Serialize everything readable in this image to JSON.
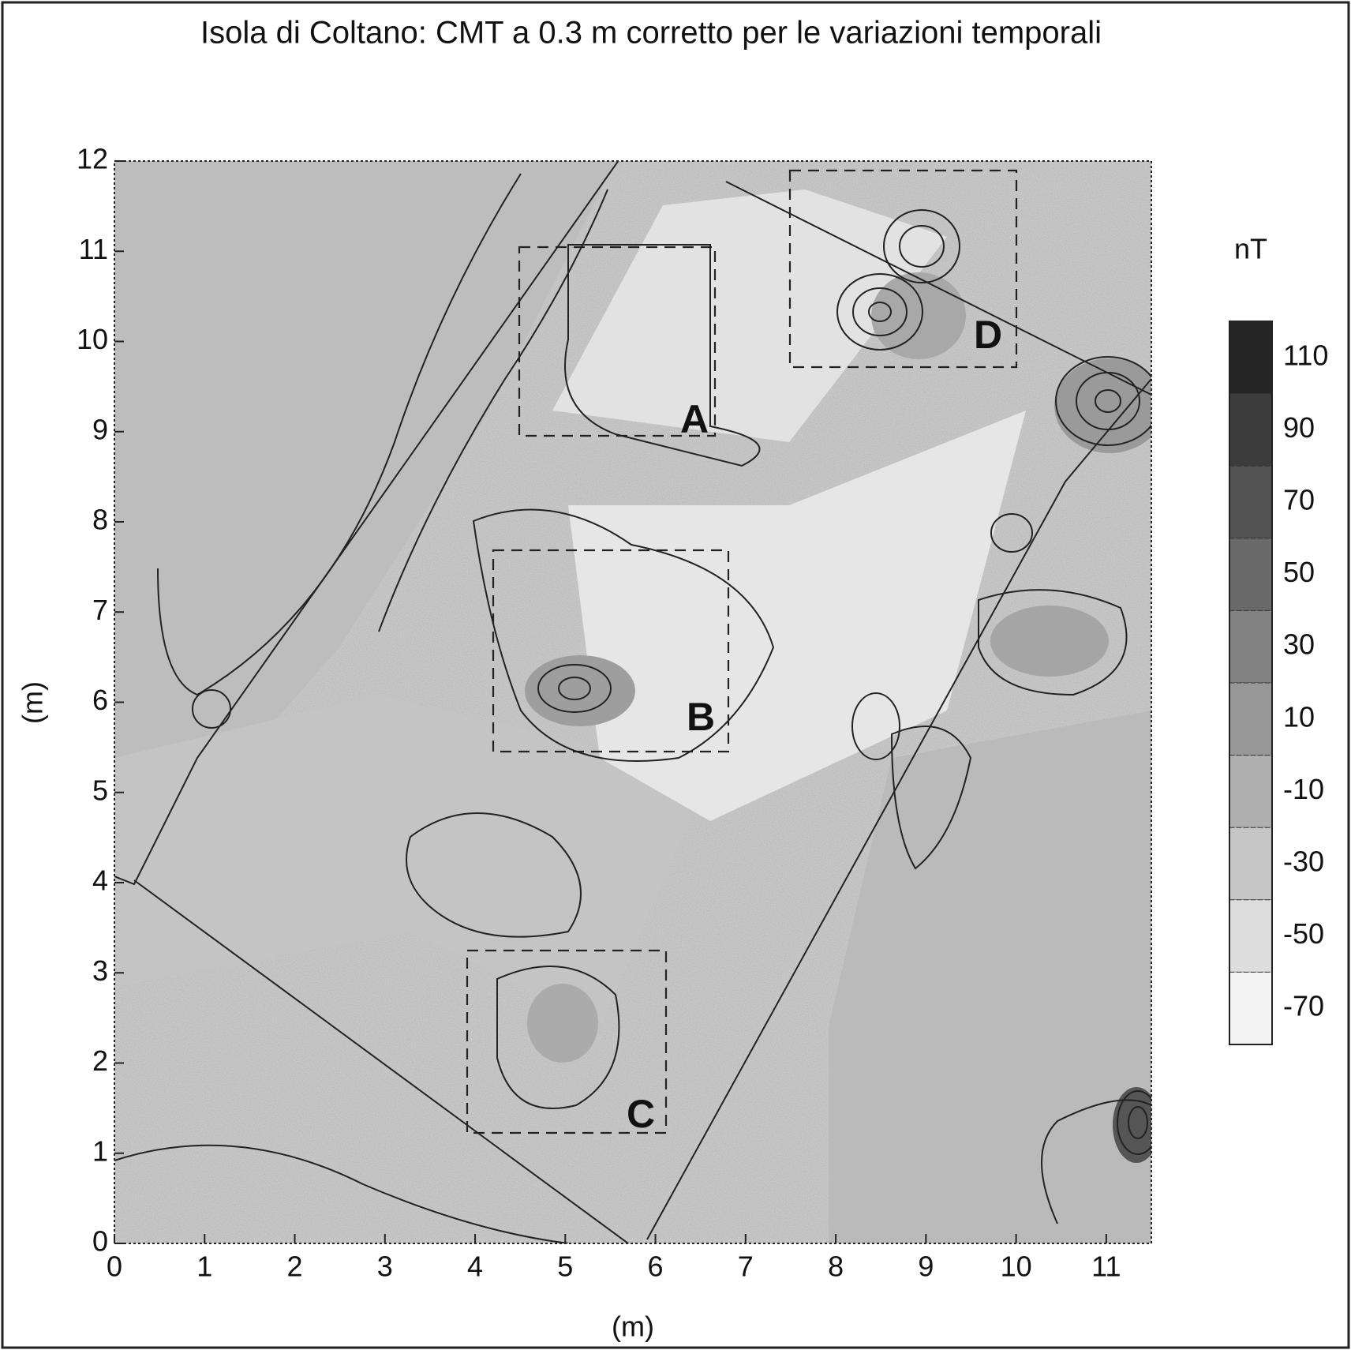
{
  "chart_data": {
    "type": "contour",
    "title": "Isola di Coltano: CMT a 0.3 m corretto per le variazioni temporali",
    "xlabel": "(m)",
    "ylabel": "(m)",
    "xlim": [
      0,
      11.5
    ],
    "ylim": [
      0,
      12
    ],
    "xticks": [
      0,
      1,
      2,
      3,
      4,
      5,
      6,
      7,
      8,
      9,
      10,
      11
    ],
    "yticks": [
      0,
      1,
      2,
      3,
      4,
      5,
      6,
      7,
      8,
      9,
      10,
      11,
      12
    ],
    "colorbar": {
      "label": "nT",
      "lim": [
        -80,
        120
      ],
      "ticks": [
        110,
        90,
        70,
        50,
        30,
        10,
        -10,
        -30,
        -50,
        -70
      ]
    },
    "colormap": [
      "#ffffff",
      "#1a1a1a"
    ],
    "annotations": [
      "A",
      "B",
      "C",
      "D"
    ]
  }
}
